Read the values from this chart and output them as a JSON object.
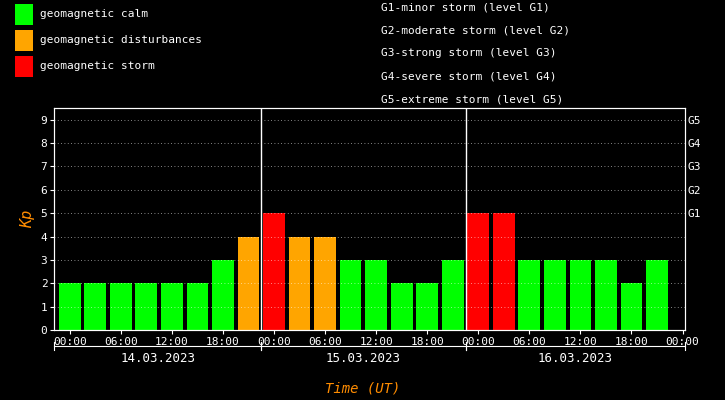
{
  "background_color": "#000000",
  "plot_bg_color": "#000000",
  "text_color": "#ffffff",
  "grid_color": "#ffffff",
  "ylabel": "Kp",
  "ylabel_color": "#ff8c00",
  "xlabel": "Time (UT)",
  "xlabel_color": "#ff8c00",
  "ylim": [
    0,
    9.5
  ],
  "yticks": [
    0,
    1,
    2,
    3,
    4,
    5,
    6,
    7,
    8,
    9
  ],
  "right_labels": [
    "G1",
    "G2",
    "G3",
    "G4",
    "G5"
  ],
  "right_label_yvals": [
    5,
    6,
    7,
    8,
    9
  ],
  "days": [
    "14.03.2023",
    "15.03.2023",
    "16.03.2023"
  ],
  "bar_width": 0.85,
  "values": [
    [
      2,
      2,
      2,
      2,
      2,
      2,
      3,
      4
    ],
    [
      5,
      4,
      4,
      3,
      3,
      2,
      2,
      3
    ],
    [
      5,
      5,
      3,
      3,
      3,
      3,
      2,
      3
    ]
  ],
  "colors": [
    [
      "#00ff00",
      "#00ff00",
      "#00ff00",
      "#00ff00",
      "#00ff00",
      "#00ff00",
      "#00ff00",
      "#ffa500"
    ],
    [
      "#ff0000",
      "#ffa500",
      "#ffa500",
      "#00ff00",
      "#00ff00",
      "#00ff00",
      "#00ff00",
      "#00ff00"
    ],
    [
      "#ff0000",
      "#ff0000",
      "#00ff00",
      "#00ff00",
      "#00ff00",
      "#00ff00",
      "#00ff00",
      "#00ff00"
    ]
  ],
  "time_labels": [
    "00:00",
    "06:00",
    "12:00",
    "18:00",
    "00:00",
    "06:00",
    "12:00",
    "18:00",
    "00:00",
    "06:00",
    "12:00",
    "18:00",
    "00:00"
  ],
  "legend_items": [
    {
      "label": "geomagnetic calm",
      "color": "#00ff00"
    },
    {
      "label": "geomagnetic disturbances",
      "color": "#ffa500"
    },
    {
      "label": "geomagnetic storm",
      "color": "#ff0000"
    }
  ],
  "g_legend": [
    "G1-minor storm (level G1)",
    "G2-moderate storm (level G2)",
    "G3-strong storm (level G3)",
    "G4-severe storm (level G4)",
    "G5-extreme storm (level G5)"
  ],
  "font_name": "monospace",
  "legend_font_size": 8,
  "tick_font_size": 8,
  "date_font_size": 9,
  "xlabel_font_size": 9
}
